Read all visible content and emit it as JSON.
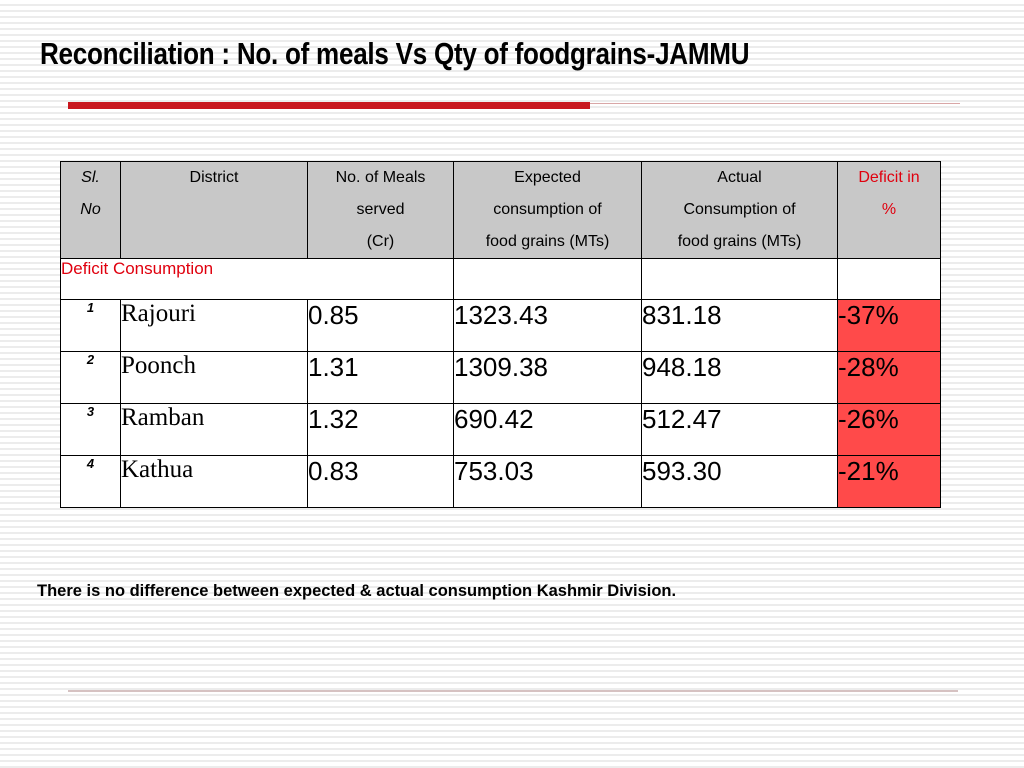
{
  "slide": {
    "title": "Reconciliation : No. of meals Vs Qty of foodgrains-JAMMU",
    "note": "There is no difference between expected & actual consumption Kashmir Division."
  },
  "table": {
    "headers": {
      "sl": [
        "Sl.",
        "No"
      ],
      "district": [
        "District"
      ],
      "meals": [
        "No. of Meals",
        "served",
        "(Cr)"
      ],
      "expected": [
        "Expected",
        "consumption of",
        "food grains (MTs)"
      ],
      "actual": [
        "Actual",
        "Consumption of",
        "food grains (MTs)"
      ],
      "deficit": [
        "Deficit in",
        "%"
      ]
    },
    "section_label": "Deficit Consumption",
    "rows": [
      {
        "sl": "1",
        "district": "Rajouri",
        "meals": "0.85",
        "expected": "1323.43",
        "actual": "831.18",
        "deficit": "-37%"
      },
      {
        "sl": "2",
        "district": "Poonch",
        "meals": "1.31",
        "expected": "1309.38",
        "actual": "948.18",
        "deficit": "-28%"
      },
      {
        "sl": "3",
        "district": "Ramban",
        "meals": "1.32",
        "expected": "690.42",
        "actual": "512.47",
        "deficit": "-26%"
      },
      {
        "sl": "4",
        "district": "Kathua",
        "meals": "0.83",
        "expected": "753.03",
        "actual": "593.30",
        "deficit": "-21%"
      }
    ]
  },
  "colors": {
    "accent_red": "#c8161d",
    "deficit_fill": "#ff4a4a",
    "header_fill": "#c8c8c8",
    "label_red": "#e0000e"
  }
}
